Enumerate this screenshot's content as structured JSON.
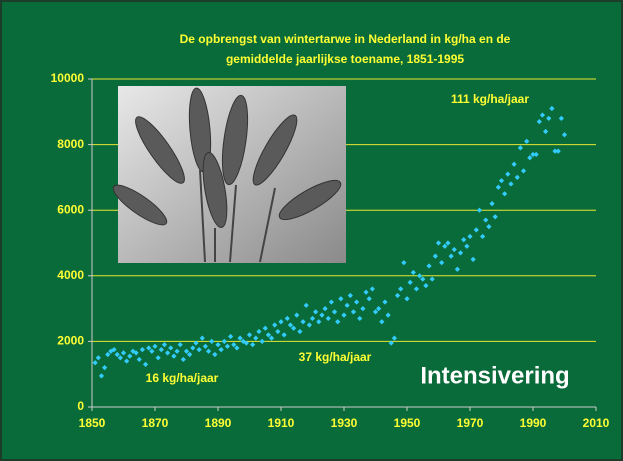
{
  "chart_data": {
    "type": "scatter",
    "title": [
      "De opbrengst van wintertarwe in Nederland in kg/ha en de",
      "gemiddelde jaarlijkse toename, 1851-1995"
    ],
    "annotations": [
      "111 kg/ha/jaar",
      "37 kg/ha/jaar",
      "16 kg/ha/jaar",
      "Intensivering"
    ],
    "color": "#33ccff",
    "grid": true,
    "xlim": [
      1850,
      2010
    ],
    "ylim": [
      0,
      10000
    ],
    "xticks": [
      1850,
      1870,
      1890,
      1910,
      1930,
      1950,
      1970,
      1990,
      2010
    ],
    "yticks": [
      0,
      2000,
      4000,
      6000,
      8000,
      10000
    ],
    "x": [
      1851,
      1852,
      1853,
      1854,
      1855,
      1856,
      1857,
      1858,
      1859,
      1860,
      1861,
      1862,
      1863,
      1864,
      1865,
      1866,
      1867,
      1868,
      1869,
      1870,
      1871,
      1872,
      1873,
      1874,
      1875,
      1876,
      1877,
      1878,
      1879,
      1880,
      1881,
      1882,
      1883,
      1884,
      1885,
      1886,
      1887,
      1888,
      1889,
      1890,
      1891,
      1892,
      1893,
      1894,
      1895,
      1896,
      1897,
      1898,
      1899,
      1900,
      1901,
      1902,
      1903,
      1904,
      1905,
      1906,
      1907,
      1908,
      1909,
      1910,
      1911,
      1912,
      1913,
      1914,
      1915,
      1916,
      1917,
      1918,
      1919,
      1920,
      1921,
      1922,
      1923,
      1924,
      1925,
      1926,
      1927,
      1928,
      1929,
      1930,
      1931,
      1932,
      1933,
      1934,
      1935,
      1936,
      1937,
      1938,
      1939,
      1940,
      1941,
      1942,
      1943,
      1944,
      1945,
      1946,
      1947,
      1948,
      1949,
      1950,
      1951,
      1952,
      1953,
      1954,
      1955,
      1956,
      1957,
      1958,
      1959,
      1960,
      1961,
      1962,
      1963,
      1964,
      1965,
      1966,
      1967,
      1968,
      1969,
      1970,
      1971,
      1972,
      1973,
      1974,
      1975,
      1976,
      1977,
      1978,
      1979,
      1980,
      1981,
      1982,
      1983,
      1984,
      1985,
      1986,
      1987,
      1988,
      1989,
      1990,
      1991,
      1992,
      1993,
      1994,
      1995,
      1996,
      1997,
      1998,
      1999,
      2000
    ],
    "values": [
      1350,
      1500,
      950,
      1200,
      1600,
      1700,
      1750,
      1600,
      1500,
      1650,
      1400,
      1550,
      1700,
      1650,
      1450,
      1750,
      1300,
      1800,
      1700,
      1850,
      1500,
      1750,
      1900,
      1650,
      1800,
      1550,
      1700,
      1900,
      1450,
      1700,
      1600,
      1800,
      1950,
      1750,
      2100,
      1850,
      1700,
      2000,
      1600,
      1900,
      1750,
      2000,
      1850,
      2150,
      1900,
      1800,
      2100,
      2000,
      1950,
      2200,
      1900,
      2100,
      2300,
      2000,
      2400,
      2200,
      2100,
      2500,
      2300,
      2600,
      2200,
      2700,
      2500,
      2400,
      2800,
      2300,
      2600,
      3100,
      2500,
      2700,
      2900,
      2600,
      2800,
      3000,
      2700,
      3200,
      2900,
      2600,
      3300,
      2800,
      3100,
      3400,
      2900,
      3200,
      2700,
      3000,
      3500,
      3300,
      3600,
      2900,
      3000,
      2600,
      3200,
      2800,
      1950,
      2100,
      3400,
      3600,
      4400,
      3300,
      3800,
      4100,
      3600,
      4000,
      3900,
      3700,
      4300,
      3900,
      4600,
      5000,
      4400,
      4900,
      5000,
      4600,
      4800,
      4200,
      4700,
      5100,
      4900,
      5200,
      4500,
      5400,
      6000,
      5200,
      5700,
      5500,
      6200,
      5800,
      6700,
      6900,
      6500,
      7100,
      6800,
      7400,
      7000,
      7900,
      7200,
      8100,
      7600,
      7700,
      7700,
      8700,
      8900,
      8400,
      8800,
      9100,
      7800,
      7800,
      8800,
      8300
    ]
  }
}
